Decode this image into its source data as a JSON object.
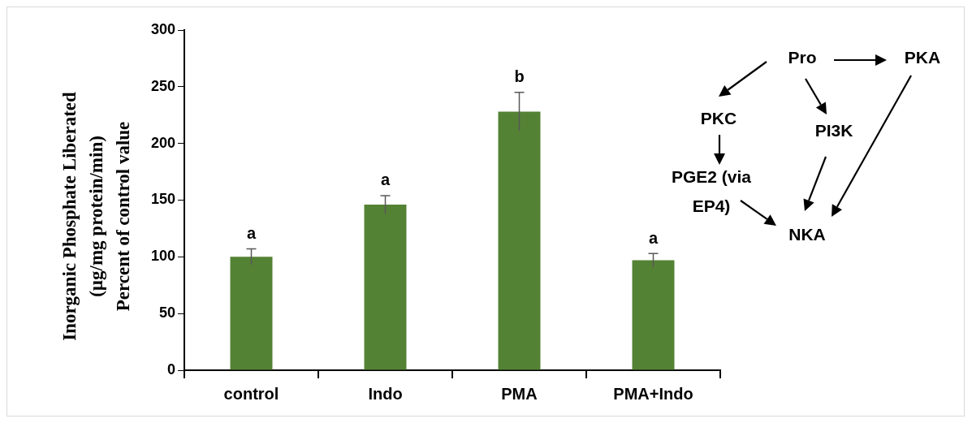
{
  "chart_data": {
    "type": "bar",
    "ylabel": "Inorganic Phosphate Liberated\n(µg/mg protein/min)\nPercent of control value",
    "categories": [
      "control",
      "Indo",
      "PMA",
      "PMA+Indo"
    ],
    "values": [
      100,
      146,
      228,
      97
    ],
    "errors": [
      7,
      8,
      17,
      6
    ],
    "color": "#548235",
    "ylim": [
      0,
      300
    ],
    "yticks": [
      0,
      50,
      100,
      150,
      200,
      250,
      300
    ],
    "grid": false,
    "legend": false,
    "annotations": [
      {
        "text": "a",
        "x": "control",
        "y": 107
      },
      {
        "text": "a",
        "x": "Indo",
        "y": 154
      },
      {
        "text": "b",
        "x": "PMA",
        "y": 245
      },
      {
        "text": "a",
        "x": "PMA+Indo",
        "y": 103
      },
      "Pro",
      "PKA",
      "PKC",
      "PI3K",
      "PGE2 (via EP4)",
      "NKA"
    ]
  }
}
